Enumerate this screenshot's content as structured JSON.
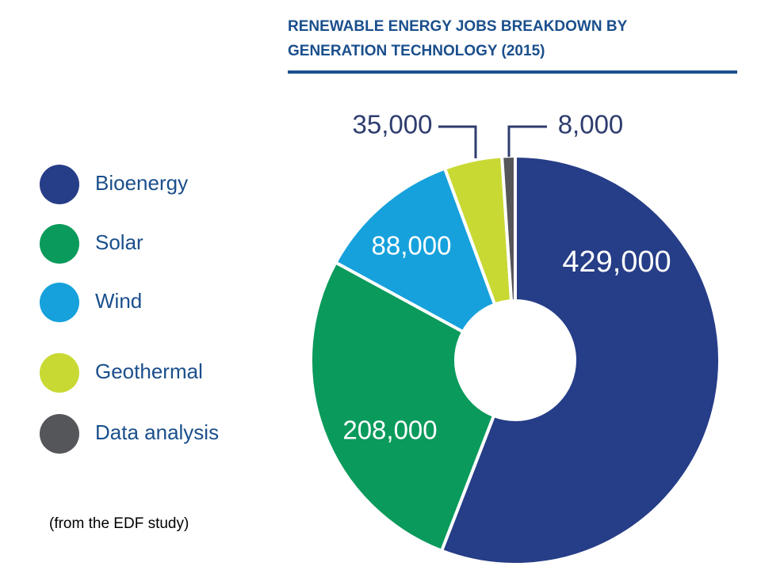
{
  "chart_data": {
    "type": "donut",
    "title": "RENEWABLE ENERGY JOBS BREAKDOWN BY GENERATION TECHNOLOGY (2015)",
    "categories": [
      "Bioenergy",
      "Solar",
      "Wind",
      "Geothermal",
      "Data analysis"
    ],
    "values": [
      429000,
      208000,
      88000,
      35000,
      8000
    ],
    "value_labels": [
      "429,000",
      "208,000",
      "88,000",
      "35,000",
      "8,000"
    ],
    "colors": [
      "#263d87",
      "#0a9a5c",
      "#16a1dc",
      "#c9d934",
      "#55565a"
    ],
    "legend": "left",
    "annotation": "(from the EDF study)"
  }
}
